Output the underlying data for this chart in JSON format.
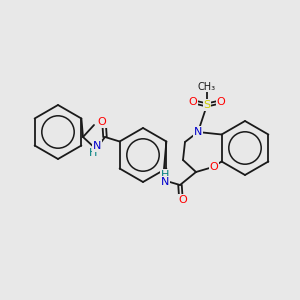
{
  "background_color": "#e8e8e8",
  "figsize": [
    3.0,
    3.0
  ],
  "dpi": 100,
  "colors": {
    "S": "#cccc00",
    "N": "#0000cc",
    "O": "#ff0000",
    "H": "#008080",
    "bond": "#1a1a1a",
    "bg": "#e8e8e8"
  },
  "bw": 1.3
}
